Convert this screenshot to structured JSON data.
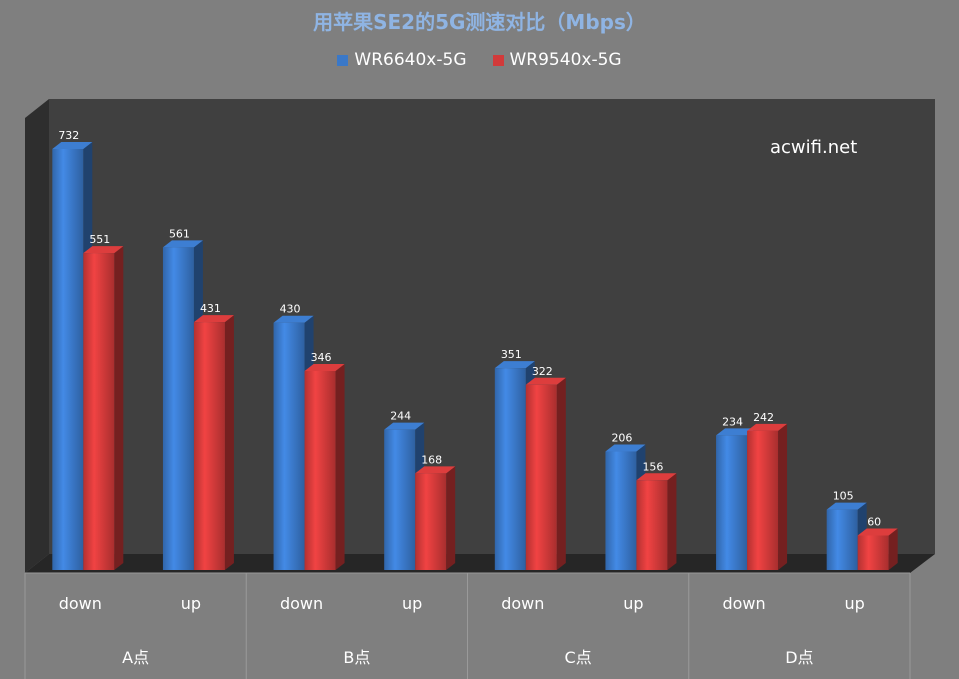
{
  "title": "用苹果SE2的5G测速对比（Mbps）",
  "watermark": "acwifi.net",
  "colors": {
    "background": "#7f7f7f",
    "plot_back": "#404040",
    "plot_floor": "#262626",
    "series_blue": "#3a78c8",
    "series_red": "#d23a3a",
    "title_color": "#8fb4e3"
  },
  "chart_data": {
    "type": "bar",
    "title": "用苹果SE2的5G测速对比（Mbps）",
    "style": "3d-clustered-column",
    "groups": [
      "A点",
      "B点",
      "C点",
      "D点"
    ],
    "categories": [
      "down",
      "up",
      "down",
      "up",
      "down",
      "up",
      "down",
      "up"
    ],
    "series": [
      {
        "name": "WR6640x-5G",
        "values": [
          732,
          561,
          430,
          244,
          351,
          206,
          234,
          105
        ]
      },
      {
        "name": "WR9540x-5G",
        "values": [
          551,
          431,
          346,
          168,
          322,
          156,
          242,
          60
        ]
      }
    ],
    "ylim": [
      0,
      732
    ],
    "grid": false,
    "legend_position": "top"
  }
}
